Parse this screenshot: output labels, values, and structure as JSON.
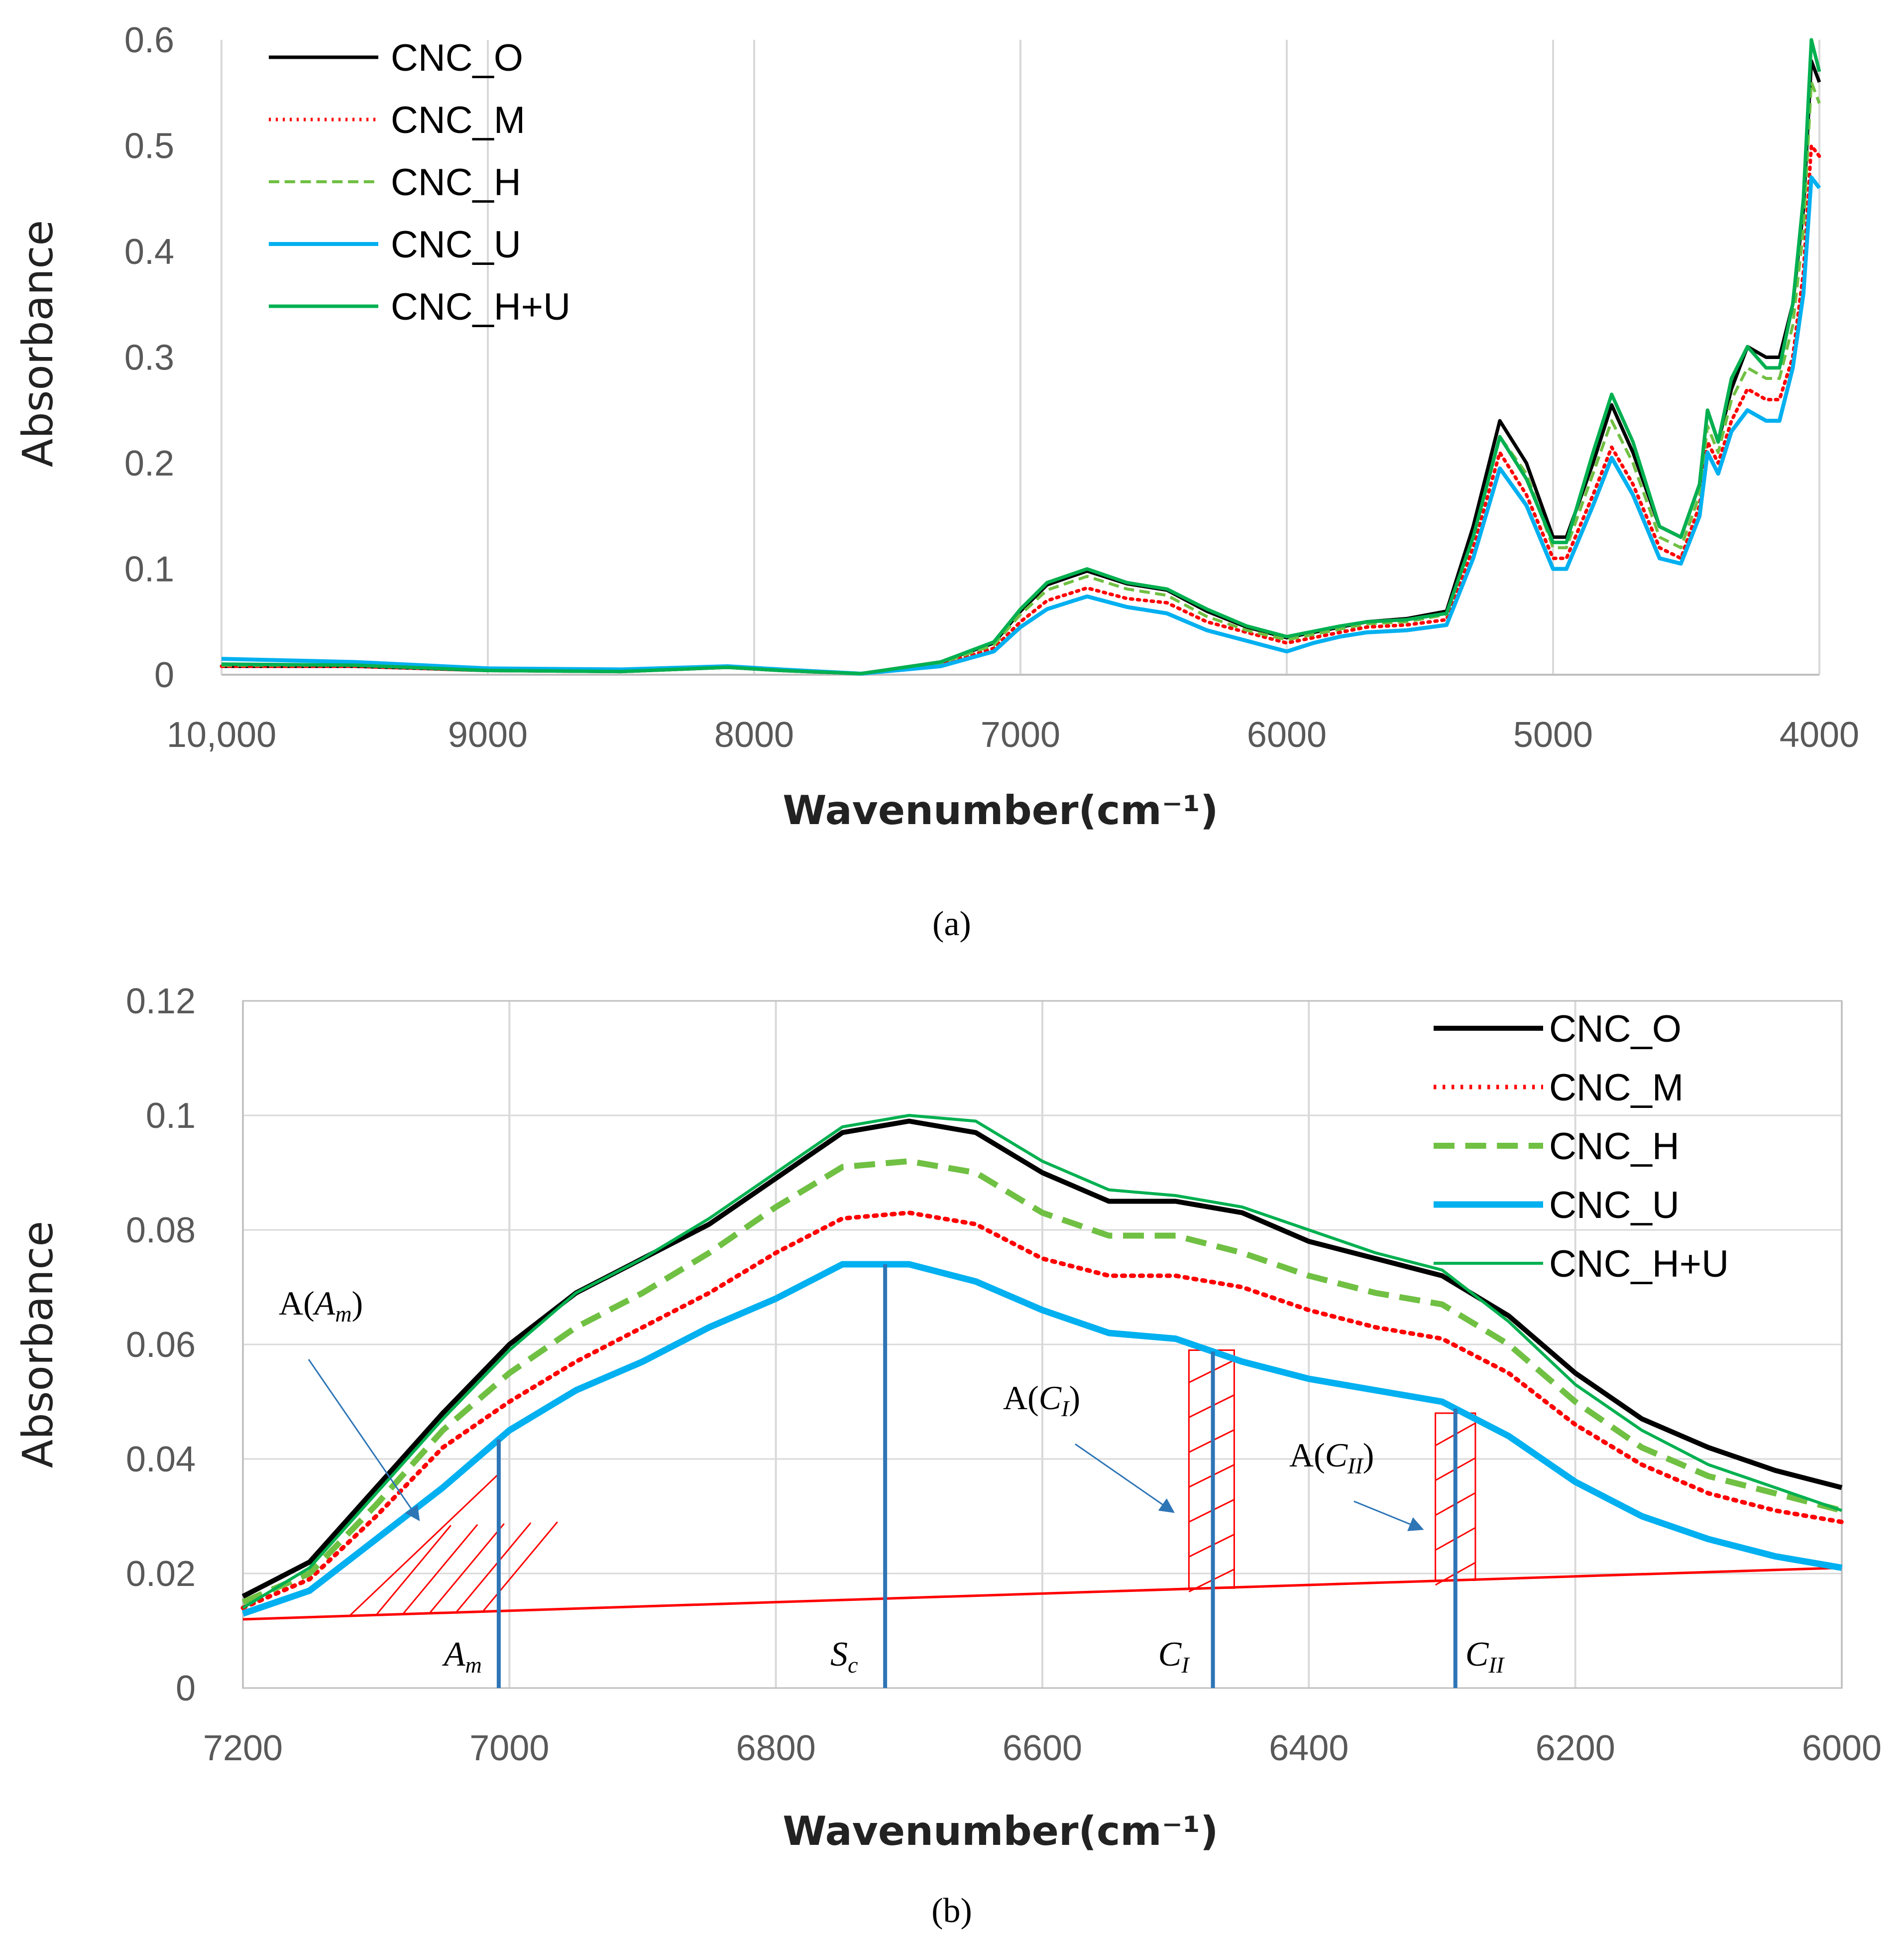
{
  "chart_data": [
    {
      "panel": "a",
      "type": "line",
      "panel_label": "(a)",
      "title": "",
      "xlabel": "Wavenumber(cm⁻¹)",
      "ylabel": "Absorbance",
      "xlim": [
        10000,
        4000
      ],
      "ylim": [
        0,
        0.6
      ],
      "x_reversed": true,
      "grid": "vertical",
      "x_ticks": [
        10000,
        9000,
        8000,
        7000,
        6000,
        5000,
        4000
      ],
      "x_tick_labels": [
        "10,000",
        "9000",
        "8000",
        "7000",
        "6000",
        "5000",
        "4000"
      ],
      "y_ticks": [
        0,
        0.1,
        0.2,
        0.3,
        0.4,
        0.5,
        0.6
      ],
      "y_tick_labels": [
        "0",
        "0.1",
        "0.2",
        "0.3",
        "0.4",
        "0.5",
        "0.6"
      ],
      "legend_position": "top-left",
      "x": [
        10000,
        9500,
        9000,
        8500,
        8100,
        7900,
        7600,
        7300,
        7100,
        7000,
        6900,
        6750,
        6600,
        6450,
        6300,
        6150,
        6000,
        5900,
        5800,
        5700,
        5550,
        5400,
        5300,
        5200,
        5100,
        5000,
        4950,
        4850,
        4780,
        4700,
        4600,
        4520,
        4450,
        4420,
        4380,
        4330,
        4270,
        4200,
        4150,
        4100,
        4060,
        4030,
        4000
      ],
      "series": [
        {
          "name": "CNC_O",
          "color": "#000000",
          "dash": "solid",
          "width": 7,
          "values": [
            0.008,
            0.008,
            0.004,
            0.003,
            0.007,
            0.004,
            0.001,
            0.012,
            0.03,
            0.06,
            0.085,
            0.098,
            0.086,
            0.08,
            0.06,
            0.045,
            0.035,
            0.04,
            0.045,
            0.05,
            0.053,
            0.06,
            0.14,
            0.24,
            0.2,
            0.13,
            0.13,
            0.2,
            0.255,
            0.21,
            0.14,
            0.13,
            0.18,
            0.25,
            0.22,
            0.27,
            0.31,
            0.3,
            0.3,
            0.35,
            0.44,
            0.58,
            0.56
          ]
        },
        {
          "name": "CNC_M",
          "color": "#ff0000",
          "dash": "dotted",
          "width": 7,
          "values": [
            0.008,
            0.008,
            0.004,
            0.003,
            0.007,
            0.004,
            0.001,
            0.01,
            0.025,
            0.05,
            0.07,
            0.082,
            0.072,
            0.068,
            0.05,
            0.04,
            0.03,
            0.035,
            0.04,
            0.045,
            0.047,
            0.052,
            0.12,
            0.21,
            0.17,
            0.11,
            0.11,
            0.17,
            0.215,
            0.18,
            0.12,
            0.11,
            0.16,
            0.22,
            0.2,
            0.24,
            0.27,
            0.26,
            0.26,
            0.3,
            0.38,
            0.5,
            0.49
          ]
        },
        {
          "name": "CNC_H",
          "color": "#70c043",
          "dash": "dashed",
          "width": 6,
          "values": [
            0.009,
            0.009,
            0.004,
            0.003,
            0.007,
            0.004,
            0.001,
            0.011,
            0.028,
            0.057,
            0.08,
            0.093,
            0.081,
            0.075,
            0.055,
            0.042,
            0.033,
            0.038,
            0.043,
            0.048,
            0.05,
            0.057,
            0.13,
            0.225,
            0.19,
            0.12,
            0.12,
            0.19,
            0.24,
            0.2,
            0.13,
            0.12,
            0.17,
            0.235,
            0.21,
            0.26,
            0.29,
            0.28,
            0.28,
            0.33,
            0.42,
            0.56,
            0.54
          ]
        },
        {
          "name": "CNC_U",
          "color": "#00b0f0",
          "dash": "solid",
          "width": 8,
          "values": [
            0.015,
            0.012,
            0.006,
            0.005,
            0.008,
            0.005,
            0.001,
            0.008,
            0.022,
            0.045,
            0.062,
            0.074,
            0.064,
            0.058,
            0.042,
            0.032,
            0.022,
            0.03,
            0.036,
            0.04,
            0.042,
            0.047,
            0.11,
            0.195,
            0.16,
            0.1,
            0.1,
            0.16,
            0.205,
            0.17,
            0.11,
            0.105,
            0.15,
            0.21,
            0.19,
            0.23,
            0.25,
            0.24,
            0.24,
            0.29,
            0.36,
            0.47,
            0.46
          ]
        },
        {
          "name": "CNC_H+U",
          "color": "#00b050",
          "dash": "solid",
          "width": 7,
          "values": [
            0.01,
            0.009,
            0.004,
            0.003,
            0.007,
            0.004,
            0.001,
            0.012,
            0.031,
            0.062,
            0.087,
            0.1,
            0.087,
            0.081,
            0.062,
            0.046,
            0.036,
            0.041,
            0.046,
            0.05,
            0.052,
            0.058,
            0.13,
            0.225,
            0.185,
            0.125,
            0.125,
            0.21,
            0.265,
            0.22,
            0.14,
            0.13,
            0.18,
            0.25,
            0.22,
            0.28,
            0.31,
            0.29,
            0.29,
            0.35,
            0.45,
            0.6,
            0.57
          ]
        }
      ]
    },
    {
      "panel": "b",
      "type": "line",
      "panel_label": "(b)",
      "title": "",
      "xlabel": "Wavenumber(cm⁻¹)",
      "ylabel": "Absorbance",
      "xlim": [
        7200,
        6000
      ],
      "ylim": [
        0,
        0.12
      ],
      "x_reversed": true,
      "grid": "both",
      "x_ticks": [
        7200,
        7000,
        6800,
        6600,
        6400,
        6200,
        6000
      ],
      "x_tick_labels": [
        "7200",
        "7000",
        "6800",
        "6600",
        "6400",
        "6200",
        "6000"
      ],
      "y_ticks": [
        0,
        0.02,
        0.04,
        0.06,
        0.08,
        0.1,
        0.12
      ],
      "y_tick_labels": [
        "0",
        "0.02",
        "0.04",
        "0.06",
        "0.08",
        "0.1",
        "0.12"
      ],
      "legend_position": "top-right",
      "x": [
        7200,
        7150,
        7100,
        7050,
        7000,
        6950,
        6900,
        6850,
        6800,
        6750,
        6700,
        6650,
        6600,
        6550,
        6500,
        6450,
        6400,
        6350,
        6300,
        6250,
        6200,
        6150,
        6100,
        6050,
        6000
      ],
      "series": [
        {
          "name": "CNC_O",
          "color": "#000000",
          "dash": "solid",
          "width": 10,
          "values": [
            0.016,
            0.022,
            0.035,
            0.048,
            0.06,
            0.069,
            0.075,
            0.081,
            0.089,
            0.097,
            0.099,
            0.097,
            0.09,
            0.085,
            0.085,
            0.083,
            0.078,
            0.075,
            0.072,
            0.065,
            0.055,
            0.047,
            0.042,
            0.038,
            0.035
          ]
        },
        {
          "name": "CNC_M",
          "color": "#ff0000",
          "dash": "dotted",
          "width": 9,
          "values": [
            0.014,
            0.019,
            0.03,
            0.042,
            0.05,
            0.057,
            0.063,
            0.069,
            0.076,
            0.082,
            0.083,
            0.081,
            0.075,
            0.072,
            0.072,
            0.07,
            0.066,
            0.063,
            0.061,
            0.055,
            0.046,
            0.039,
            0.034,
            0.031,
            0.029
          ]
        },
        {
          "name": "CNC_H",
          "color": "#70c043",
          "dash": "dashed",
          "width": 12,
          "values": [
            0.015,
            0.02,
            0.032,
            0.045,
            0.055,
            0.063,
            0.069,
            0.076,
            0.084,
            0.091,
            0.092,
            0.09,
            0.083,
            0.079,
            0.079,
            0.076,
            0.072,
            0.069,
            0.067,
            0.06,
            0.05,
            0.042,
            0.037,
            0.034,
            0.031
          ]
        },
        {
          "name": "CNC_U",
          "color": "#00b0f0",
          "dash": "solid",
          "width": 13,
          "values": [
            0.013,
            0.017,
            0.026,
            0.035,
            0.045,
            0.052,
            0.057,
            0.063,
            0.068,
            0.074,
            0.074,
            0.071,
            0.066,
            0.062,
            0.061,
            0.057,
            0.054,
            0.052,
            0.05,
            0.044,
            0.036,
            0.03,
            0.026,
            0.023,
            0.021
          ]
        },
        {
          "name": "CNC_H+U",
          "color": "#00b050",
          "dash": "solid",
          "width": 6,
          "values": [
            0.014,
            0.021,
            0.034,
            0.047,
            0.059,
            0.069,
            0.075,
            0.082,
            0.09,
            0.098,
            0.1,
            0.099,
            0.092,
            0.087,
            0.086,
            0.084,
            0.08,
            0.076,
            0.073,
            0.064,
            0.053,
            0.045,
            0.039,
            0.035,
            0.031
          ]
        }
      ],
      "baseline": {
        "x": [
          7200,
          6000
        ],
        "y": [
          0.012,
          0.021
        ],
        "color": "#ff0000"
      },
      "markers": [
        {
          "label": "A",
          "subscript": "m",
          "x": 7008
        },
        {
          "label": "S",
          "subscript": "c",
          "x": 6718
        },
        {
          "label": "C",
          "subscript": "I",
          "x": 6472
        },
        {
          "label": "C",
          "subscript": "II",
          "x": 6290
        }
      ],
      "marker_color": "#2e75b6",
      "annotations": [
        {
          "text": "A(",
          "italic": "A",
          "subscript": "m",
          "close": ")",
          "target": "A_m"
        },
        {
          "text": "A(",
          "italic": "C",
          "subscript": "I",
          "close": ")",
          "target": "C_I"
        },
        {
          "text": "A(",
          "italic": "C",
          "subscript": "II",
          "close": ")",
          "target": "C_II"
        }
      ]
    }
  ]
}
